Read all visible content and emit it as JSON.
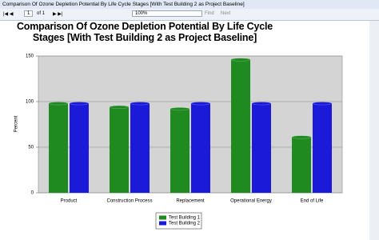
{
  "window": {
    "title": "Comparison Of Ozone Depletion Potential By Life Cycle Stages [With Test Building 2 as Project Baseline]",
    "toolbar": {
      "page": "1",
      "page_count": "of 1",
      "zoom": "100%",
      "find": "Find",
      "next": "Next"
    }
  },
  "chart_data": {
    "type": "bar",
    "title": "Comparison Of Ozone Depletion Potential By Life Cycle Stages [With Test Building 2 as Project Baseline]",
    "y_label": "Percent",
    "categories": [
      "Product",
      "Construction Process",
      "Replacement",
      "Operational Energy",
      "End of Life"
    ],
    "series": [
      {
        "name": "Test Building 1",
        "color": "#1f8a1f",
        "values": [
          98,
          94,
          92,
          146,
          61
        ]
      },
      {
        "name": "Test Building 2",
        "color": "#1a1ad8",
        "values": [
          98,
          98,
          98,
          98,
          98
        ]
      }
    ],
    "ylim": [
      0,
      150
    ],
    "yticks": [
      0,
      50,
      100,
      150
    ],
    "grid": true,
    "legend": "bottom"
  }
}
